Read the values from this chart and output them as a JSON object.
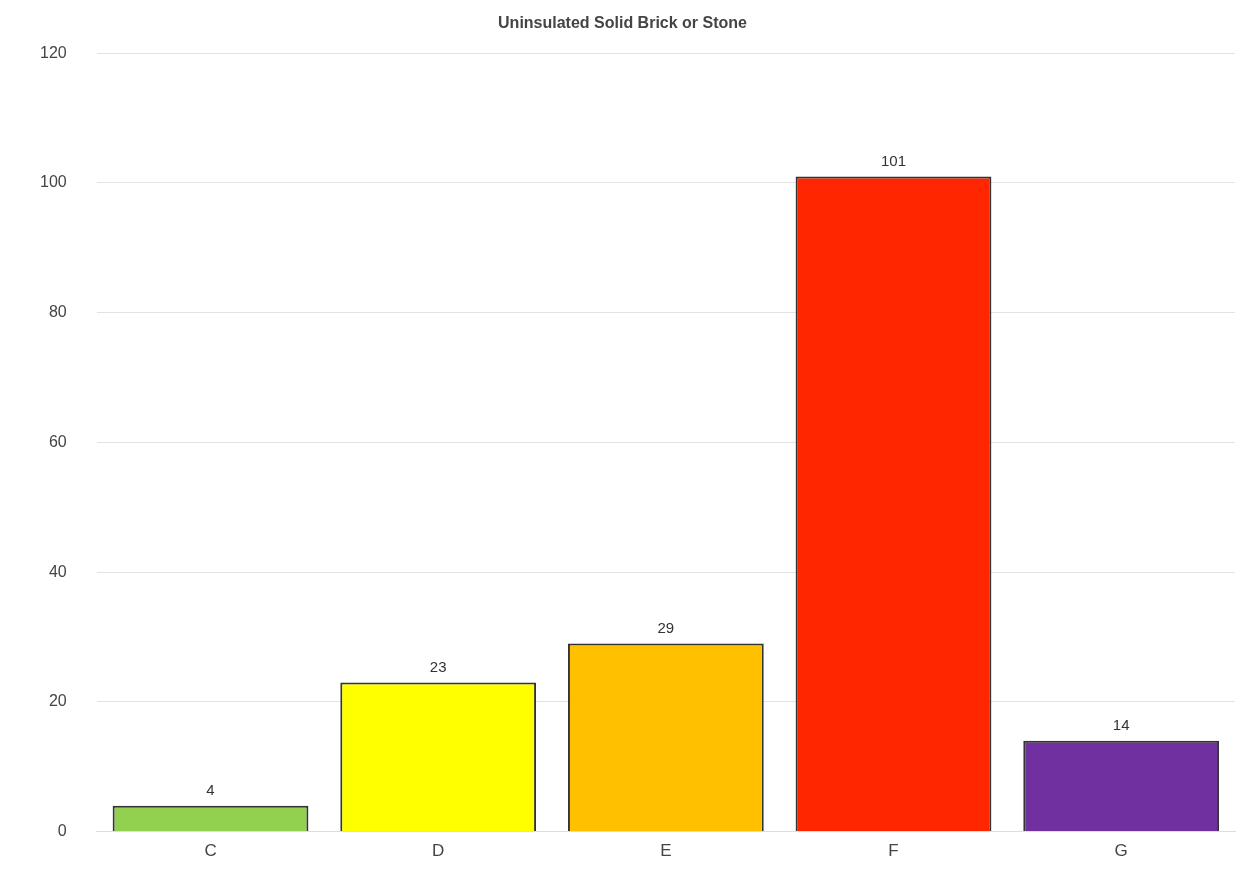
{
  "chart_data": {
    "type": "bar",
    "title": "Uninsulated Solid Brick or Stone",
    "categories": [
      "C",
      "D",
      "E",
      "F",
      "G"
    ],
    "values": [
      4,
      23,
      29,
      101,
      14
    ],
    "colors": [
      "#92d050",
      "#ffff00",
      "#ffc000",
      "#ff2600",
      "#7030a0"
    ],
    "ylim": [
      0,
      120
    ],
    "yticks": [
      0,
      20,
      40,
      60,
      80,
      100,
      120
    ],
    "grid": "y",
    "data_labels": true,
    "legend": false
  }
}
